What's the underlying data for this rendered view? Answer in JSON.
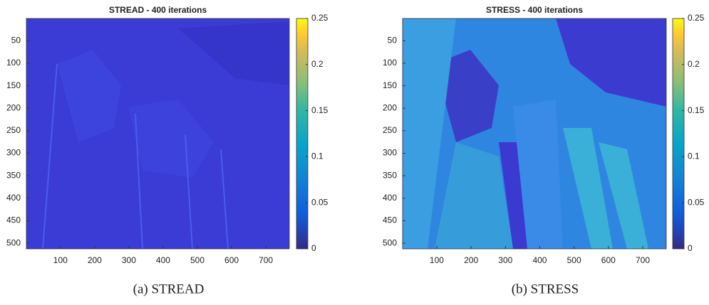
{
  "chart_data": [
    {
      "type": "image",
      "title": "STREAD - 400 iterations",
      "caption": "(a) STREAD",
      "xlim": [
        0.5,
        768.5
      ],
      "xticks": [
        100,
        200,
        300,
        400,
        500,
        600,
        700
      ],
      "ylim": [
        0.5,
        512.5
      ],
      "yticks": [
        50,
        100,
        150,
        200,
        250,
        300,
        350,
        400,
        450,
        500
      ],
      "colorbar_lim": [
        0,
        0.25
      ],
      "colorbar_ticks": [
        0,
        0.05,
        0.1,
        0.15,
        0.2,
        0.25
      ]
    },
    {
      "type": "image",
      "title": "STRESS - 400 iterations",
      "caption": "(b) STRESS",
      "xlim": [
        0.5,
        768.5
      ],
      "xticks": [
        100,
        200,
        300,
        400,
        500,
        600,
        700
      ],
      "ylim": [
        0.5,
        512.5
      ],
      "yticks": [
        50,
        100,
        150,
        200,
        250,
        300,
        350,
        400,
        450,
        500
      ],
      "colorbar_lim": [
        0,
        0.25
      ],
      "colorbar_ticks": [
        0,
        0.05,
        0.1,
        0.15,
        0.2,
        0.25
      ]
    }
  ]
}
